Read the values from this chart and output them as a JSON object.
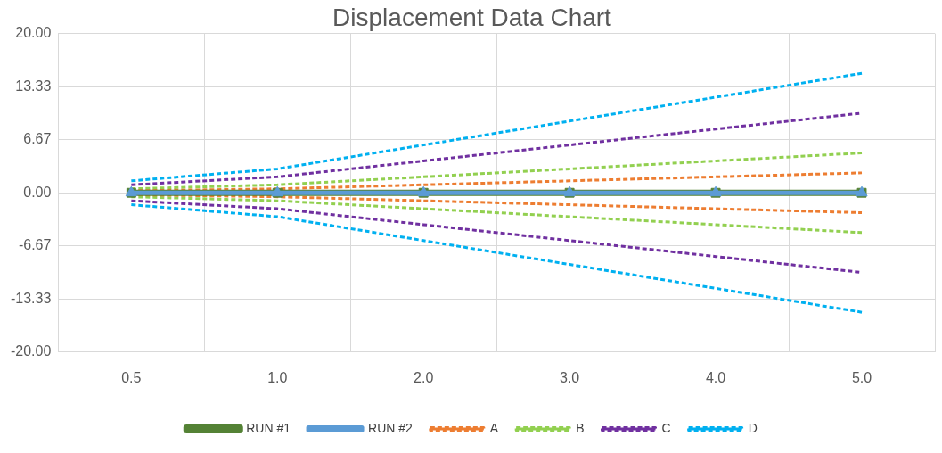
{
  "chart_data": {
    "type": "line",
    "title": "Displacement Data Chart",
    "categories": [
      "0.5",
      "1.0",
      "2.0",
      "3.0",
      "4.0",
      "5.0"
    ],
    "series": [
      {
        "name": "RUN #1",
        "color": "#548235",
        "values": [
          0,
          0,
          0,
          0,
          0,
          0
        ],
        "marker": "square",
        "line_style": "solid"
      },
      {
        "name": "RUN #2",
        "color": "#5b9bd5",
        "values": [
          0,
          0,
          0,
          0,
          0,
          0
        ],
        "marker": "triangle",
        "line_style": "solid"
      },
      {
        "name": "A",
        "color": "#ed7d31",
        "values": [
          0.25,
          0.5,
          1,
          1.5,
          2,
          2.5
        ],
        "marker": "none",
        "line_style": "dashed"
      },
      {
        "color": "#ed7d31",
        "values": [
          -0.25,
          -0.5,
          -1,
          -1.5,
          -2,
          -2.5
        ],
        "marker": "none",
        "line_style": "dashed"
      },
      {
        "name": "B",
        "color": "#92d050",
        "values": [
          0.5,
          1,
          2,
          3,
          4,
          5
        ],
        "marker": "none",
        "line_style": "dashed"
      },
      {
        "color": "#92d050",
        "values": [
          -0.5,
          -1,
          -2,
          -3,
          -4,
          -5
        ],
        "marker": "none",
        "line_style": "dashed"
      },
      {
        "name": "C",
        "color": "#7030a0",
        "values": [
          1,
          2,
          4,
          6,
          8,
          10
        ],
        "marker": "none",
        "line_style": "dashed"
      },
      {
        "color": "#7030a0",
        "values": [
          -1,
          -2,
          -4,
          -6,
          -8,
          -10
        ],
        "marker": "none",
        "line_style": "dashed"
      },
      {
        "name": "D",
        "color": "#00b0f0",
        "values": [
          1.5,
          3,
          6,
          9,
          12,
          15
        ],
        "marker": "none",
        "line_style": "dashed"
      },
      {
        "color": "#00b0f0",
        "values": [
          -1.5,
          -3,
          -6,
          -9,
          -12,
          -15
        ],
        "marker": "none",
        "line_style": "dashed"
      }
    ],
    "ylim": [
      -20,
      20
    ],
    "yticks": [
      {
        "value": -20,
        "label": "-20.00"
      },
      {
        "value": -13.33,
        "label": "-13.33"
      },
      {
        "value": -6.67,
        "label": "-6.67"
      },
      {
        "value": 0,
        "label": "0.00"
      },
      {
        "value": 6.67,
        "label": "6.67"
      },
      {
        "value": 13.33,
        "label": "13.33"
      },
      {
        "value": 20,
        "label": "20.00"
      }
    ],
    "grid": true,
    "legend": "bottom"
  }
}
